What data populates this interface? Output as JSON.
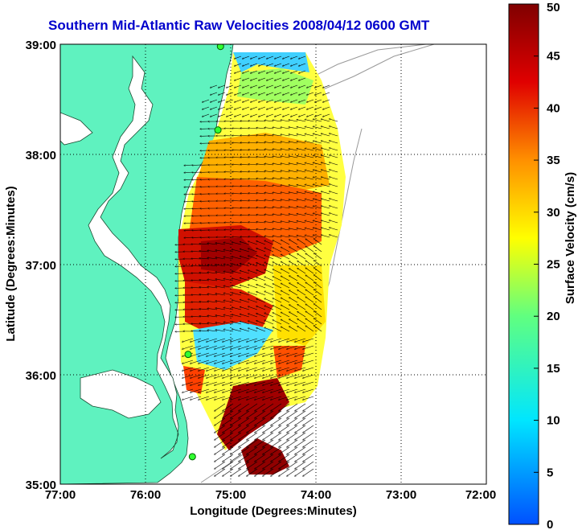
{
  "title": "Southern Mid-Atlantic Raw Velocities 2008/04/12 0600 GMT",
  "chart_data": {
    "type": "heatmap",
    "title": "Southern Mid-Atlantic Raw Velocities 2008/04/12 0600 GMT",
    "xlabel": "Longitude (Degrees:Minutes)",
    "ylabel": "Latitude (Degrees:Minutes)",
    "xlim": [
      -77,
      -72
    ],
    "ylim": [
      35,
      39
    ],
    "x_ticks": [
      "77:00",
      "76:00",
      "75:00",
      "74:00",
      "73:00",
      "72:00"
    ],
    "y_ticks": [
      "39:00",
      "38:00",
      "37:00",
      "36:00",
      "35:00"
    ],
    "grid": true,
    "colorbar": {
      "label": "Surface Velocity (cm/s)",
      "range": [
        0,
        50
      ],
      "ticks": [
        "0",
        "5",
        "10",
        "15",
        "20",
        "25",
        "30",
        "35",
        "40",
        "45",
        "50"
      ]
    },
    "stations": [
      {
        "lon": -75.12,
        "lat": 38.98
      },
      {
        "lon": -75.15,
        "lat": 38.22
      },
      {
        "lon": -75.5,
        "lat": 36.18
      },
      {
        "lon": -75.45,
        "lat": 35.25
      }
    ]
  }
}
